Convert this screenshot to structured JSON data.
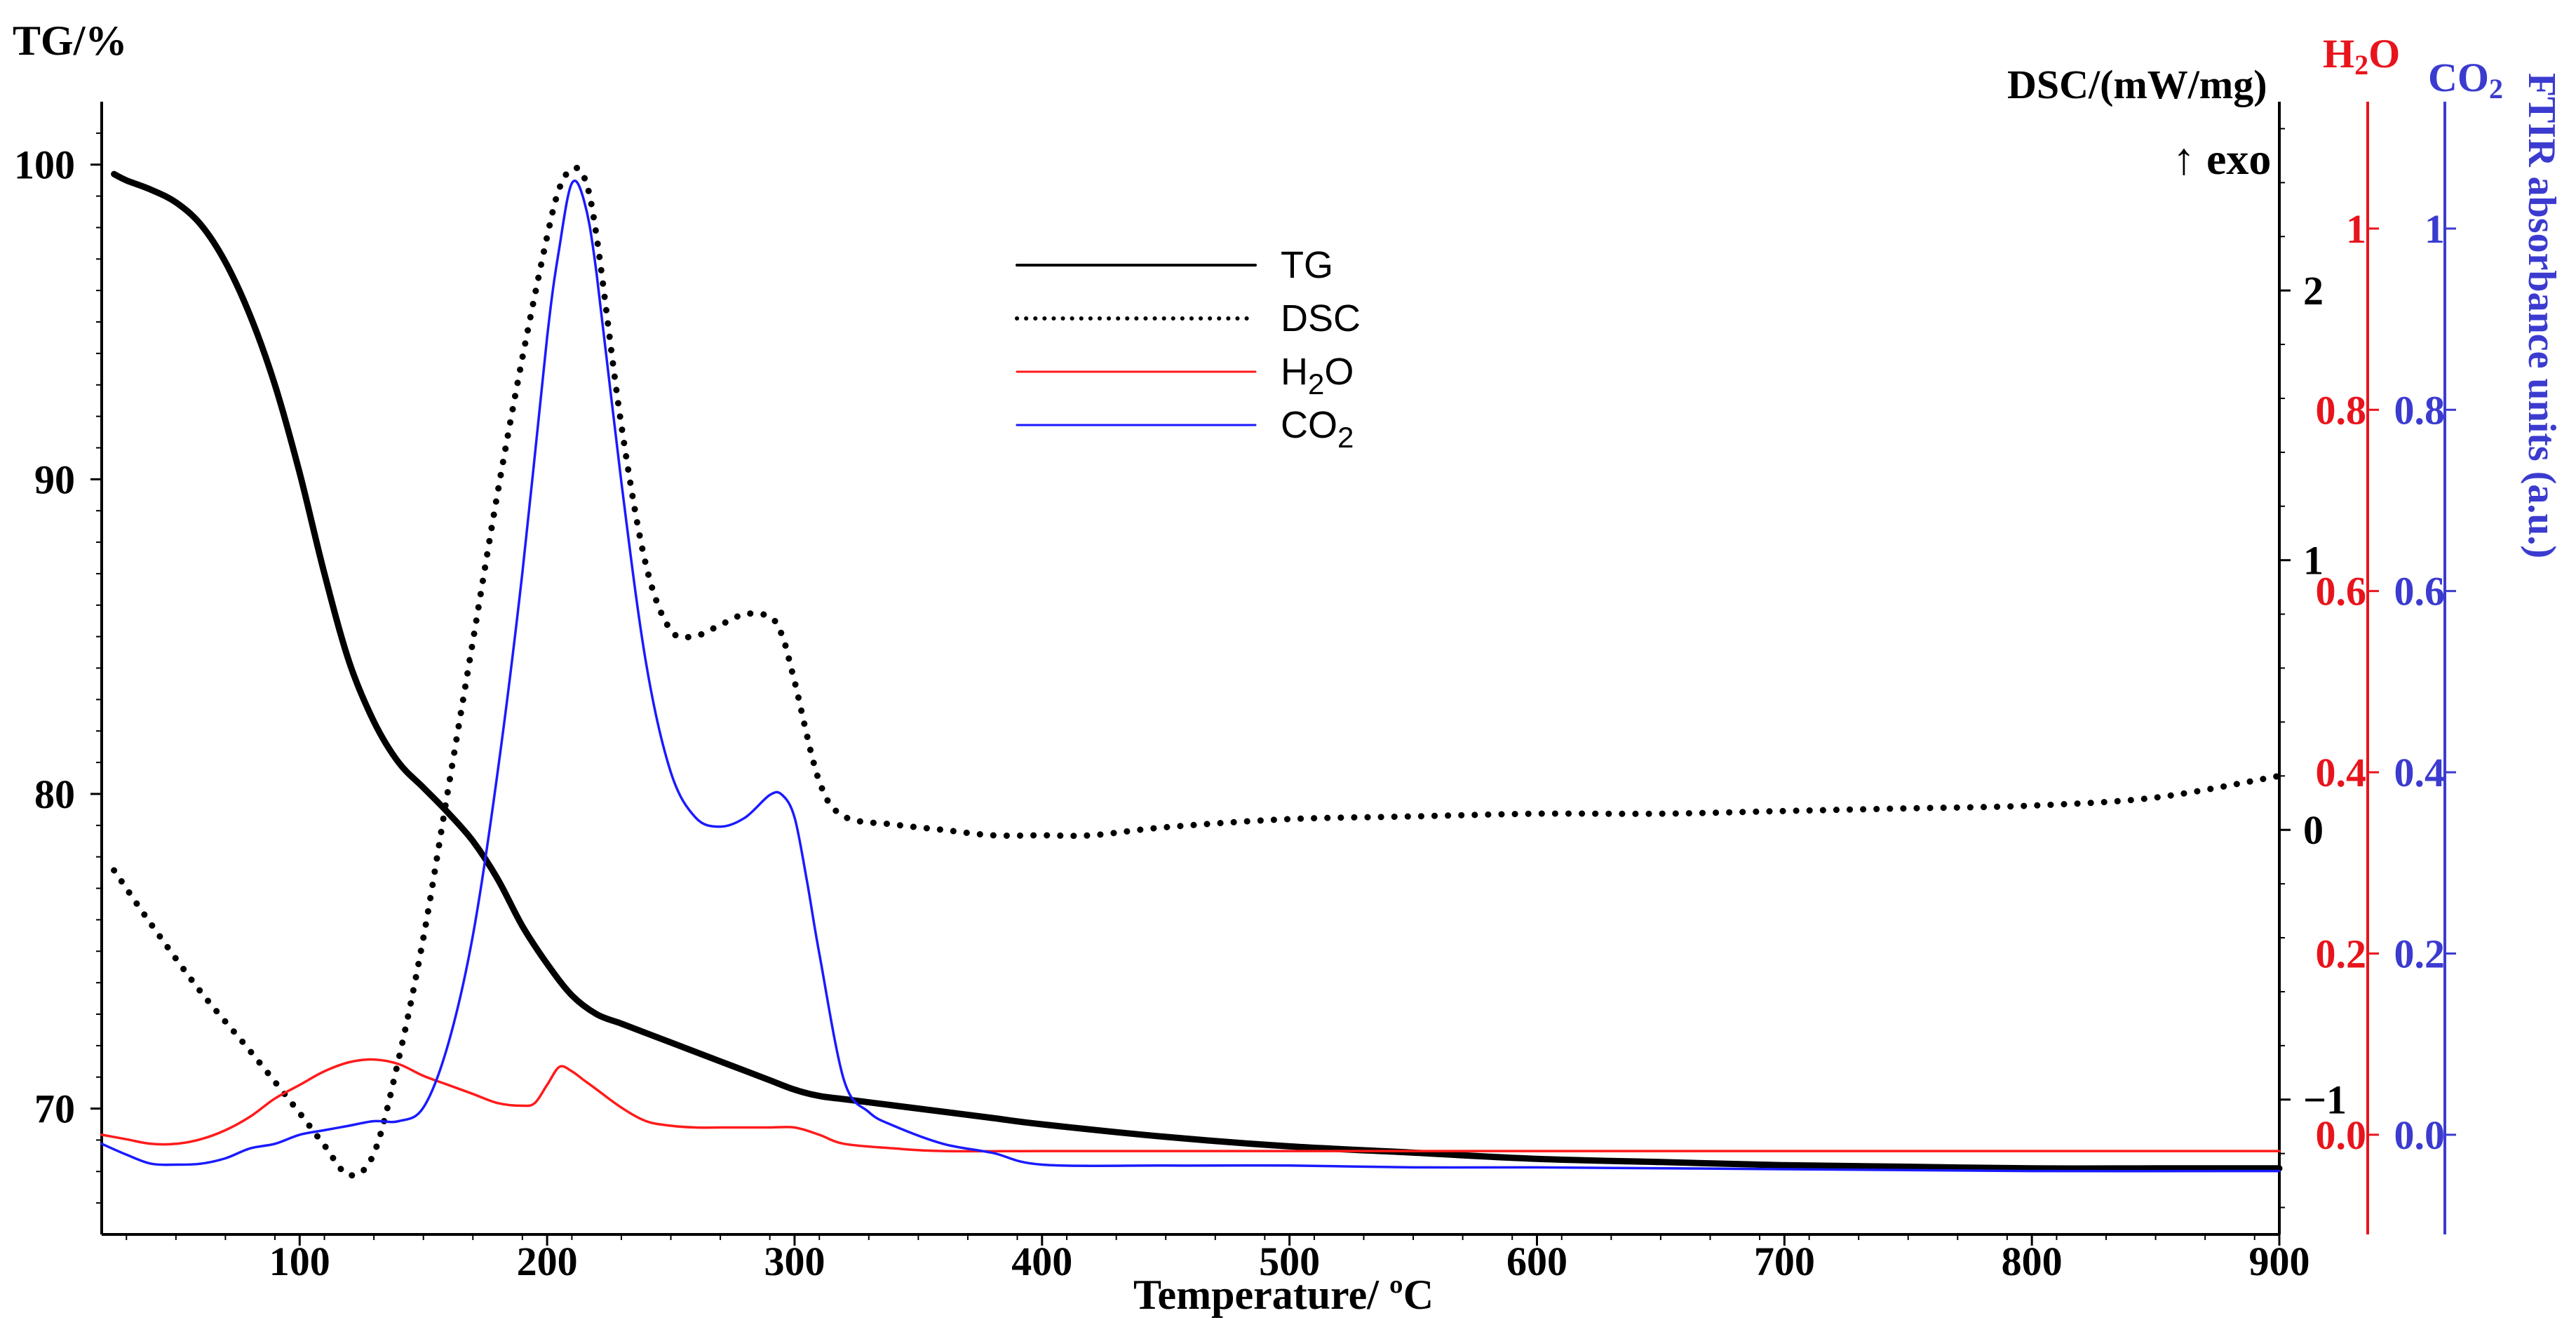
{
  "chart_data": {
    "type": "line",
    "xlabel": "Temperature/ ºC",
    "xlim": [
      20,
      900
    ],
    "xticks": [
      100,
      200,
      300,
      400,
      500,
      600,
      700,
      800,
      900
    ],
    "axes": {
      "tg": {
        "label": "TG/%",
        "lim": [
          66,
          102
        ],
        "ticks": [
          70,
          80,
          90,
          100
        ],
        "color": "#000000"
      },
      "dsc": {
        "label": "DSC/(mW/mg)",
        "annotation": "↑ exo",
        "lim": [
          -1.5,
          2.7
        ],
        "ticks": [
          -1,
          0,
          1,
          2
        ],
        "tick_labels": [
          "−1",
          "0",
          "1",
          "2"
        ],
        "color": "#000000"
      },
      "h2o": {
        "label_main": "H",
        "label_sub": "2",
        "label_end": "O",
        "lim": [
          -0.11,
          1.14
        ],
        "ticks": [
          0.0,
          0.2,
          0.4,
          0.6,
          0.8,
          1.0
        ],
        "tick_labels": [
          "0.0",
          "0.2",
          "0.4",
          "0.6",
          "0.8",
          "1"
        ],
        "color": "#e8141c"
      },
      "co2": {
        "label_main": "CO",
        "label_sub": "2",
        "lim": [
          -0.11,
          1.14
        ],
        "ticks": [
          0.0,
          0.2,
          0.4,
          0.6,
          0.8,
          1.0
        ],
        "tick_labels": [
          "0.0",
          "0.2",
          "0.4",
          "0.6",
          "0.8",
          "1"
        ],
        "color": "#3b3bd0",
        "title": "FTIR absorbance units (a.u.)"
      }
    },
    "legend": {
      "position": "upper-center",
      "entries": [
        {
          "name": "TG",
          "main": "TG",
          "sub": ""
        },
        {
          "name": "DSC",
          "main": "DSC",
          "sub": ""
        },
        {
          "name": "H2O",
          "main": "H",
          "sub": "2",
          "end": "O"
        },
        {
          "name": "CO2",
          "main": "CO",
          "sub": "2",
          "end": ""
        }
      ]
    },
    "series": [
      {
        "name": "TG",
        "axis": "tg",
        "style": "solid-thick",
        "color": "#000000",
        "x": [
          25,
          30,
          40,
          50,
          60,
          70,
          80,
          90,
          100,
          110,
          120,
          130,
          140,
          150,
          160,
          170,
          180,
          190,
          200,
          210,
          220,
          230,
          240,
          250,
          260,
          270,
          280,
          290,
          300,
          310,
          320,
          340,
          360,
          380,
          400,
          450,
          500,
          550,
          600,
          650,
          700,
          750,
          800,
          850,
          900
        ],
        "y": [
          99.7,
          99.5,
          99.2,
          98.8,
          98.1,
          96.9,
          95.2,
          93.0,
          90.2,
          87.0,
          84.2,
          82.3,
          81.0,
          80.2,
          79.4,
          78.5,
          77.3,
          75.8,
          74.6,
          73.6,
          73.0,
          72.7,
          72.4,
          72.1,
          71.8,
          71.5,
          71.2,
          70.9,
          70.6,
          70.4,
          70.3,
          70.1,
          69.9,
          69.7,
          69.5,
          69.1,
          68.8,
          68.6,
          68.4,
          68.3,
          68.2,
          68.15,
          68.1,
          68.1,
          68.1
        ]
      },
      {
        "name": "DSC",
        "axis": "dsc",
        "style": "dotted",
        "color": "#000000",
        "x": [
          25,
          40,
          60,
          80,
          100,
          110,
          120,
          130,
          140,
          150,
          160,
          170,
          180,
          190,
          200,
          205,
          210,
          215,
          220,
          230,
          240,
          250,
          260,
          270,
          280,
          290,
          295,
          300,
          310,
          320,
          340,
          360,
          380,
          400,
          420,
          450,
          500,
          550,
          600,
          650,
          700,
          750,
          800,
          850,
          900
        ],
        "y": [
          -0.15,
          -0.35,
          -0.6,
          -0.82,
          -1.05,
          -1.17,
          -1.28,
          -1.2,
          -0.85,
          -0.4,
          0.15,
          0.7,
          1.25,
          1.75,
          2.2,
          2.38,
          2.45,
          2.42,
          2.2,
          1.5,
          0.98,
          0.74,
          0.72,
          0.76,
          0.8,
          0.79,
          0.72,
          0.55,
          0.18,
          0.05,
          0.02,
          0.0,
          -0.02,
          -0.02,
          -0.02,
          0.01,
          0.04,
          0.05,
          0.06,
          0.06,
          0.07,
          0.08,
          0.09,
          0.12,
          0.2
        ]
      },
      {
        "name": "H2O",
        "axis": "h2o",
        "style": "solid-thin",
        "color": "#ff1a1a",
        "x": [
          20,
          30,
          40,
          50,
          60,
          70,
          80,
          90,
          100,
          110,
          120,
          130,
          140,
          150,
          160,
          170,
          180,
          190,
          195,
          200,
          205,
          210,
          215,
          220,
          230,
          240,
          250,
          260,
          270,
          280,
          290,
          300,
          310,
          320,
          340,
          360,
          400,
          450,
          500,
          600,
          700,
          800,
          900
        ],
        "y": [
          0.0,
          -0.005,
          -0.01,
          -0.01,
          -0.005,
          0.005,
          0.02,
          0.04,
          0.055,
          0.07,
          0.08,
          0.083,
          0.078,
          0.065,
          0.055,
          0.045,
          0.035,
          0.032,
          0.035,
          0.055,
          0.075,
          0.07,
          0.06,
          0.05,
          0.03,
          0.015,
          0.01,
          0.008,
          0.008,
          0.008,
          0.008,
          0.008,
          0.0,
          -0.01,
          -0.015,
          -0.018,
          -0.018,
          -0.018,
          -0.018,
          -0.018,
          -0.018,
          -0.018,
          -0.018
        ]
      },
      {
        "name": "CO2",
        "axis": "co2",
        "style": "solid-thin",
        "color": "#1a1aff",
        "x": [
          20,
          30,
          40,
          50,
          60,
          70,
          80,
          90,
          100,
          110,
          120,
          130,
          140,
          150,
          160,
          170,
          180,
          190,
          200,
          205,
          210,
          215,
          220,
          230,
          240,
          250,
          260,
          270,
          280,
          290,
          295,
          300,
          305,
          310,
          320,
          330,
          340,
          360,
          380,
          400,
          450,
          500,
          550,
          600,
          700,
          800,
          900
        ],
        "y": [
          -0.01,
          -0.022,
          -0.032,
          -0.033,
          -0.032,
          -0.026,
          -0.015,
          -0.01,
          -0.0,
          0.005,
          0.01,
          0.015,
          0.015,
          0.03,
          0.1,
          0.22,
          0.4,
          0.62,
          0.88,
          0.98,
          1.05,
          1.03,
          0.95,
          0.72,
          0.52,
          0.4,
          0.35,
          0.34,
          0.35,
          0.375,
          0.375,
          0.35,
          0.28,
          0.2,
          0.06,
          0.025,
          0.01,
          -0.01,
          -0.02,
          -0.033,
          -0.034,
          -0.034,
          -0.036,
          -0.036,
          -0.038,
          -0.04,
          -0.04
        ]
      }
    ]
  }
}
